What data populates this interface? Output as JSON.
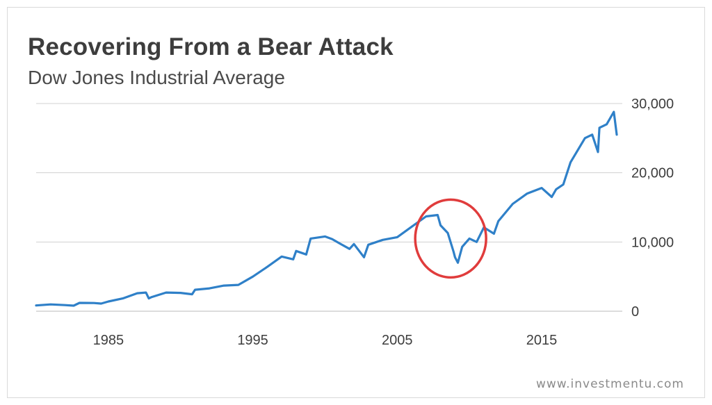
{
  "header": {
    "title": "Recovering From a Bear Attack",
    "subtitle": "Dow Jones Industrial Average"
  },
  "footer": {
    "source": "www.investmentu.com"
  },
  "colors": {
    "line": "#2f80c8",
    "highlight": "#e03c3c",
    "grid": "#d0d0d0",
    "text": "#3d3d3d"
  },
  "chart_data": {
    "type": "line",
    "title": "Recovering From a Bear Attack",
    "subtitle": "Dow Jones Industrial Average",
    "xlabel": "",
    "ylabel": "",
    "xlim": [
      1980,
      2020.2
    ],
    "ylim": [
      0,
      30000
    ],
    "grid": true,
    "y_axis_side": "right",
    "x_ticks": [
      1985,
      1995,
      2005,
      2015
    ],
    "x_tick_labels": [
      "1985",
      "1995",
      "2005",
      "2015"
    ],
    "y_ticks": [
      0,
      10000,
      20000,
      30000
    ],
    "y_tick_labels": [
      "0",
      "10,000",
      "20,000",
      "30,000"
    ],
    "series": [
      {
        "x": [
          1980,
          1981,
          1982,
          1982.6,
          1983,
          1984,
          1984.5,
          1985,
          1986,
          1987,
          1987.6,
          1987.8,
          1988,
          1989,
          1990,
          1990.8,
          1991,
          1992,
          1993,
          1994,
          1995,
          1996,
          1997,
          1997.8,
          1998,
          1998.7,
          1999,
          2000,
          2000.5,
          2001,
          2001.7,
          2002,
          2002.7,
          2003,
          2004,
          2005,
          2006,
          2007,
          2007.8,
          2008,
          2008.5,
          2008.9,
          2009,
          2009.2,
          2009.5,
          2010,
          2010.5,
          2011,
          2011.7,
          2012,
          2013,
          2014,
          2015,
          2015.7,
          2016,
          2016.5,
          2017,
          2018,
          2018.5,
          2018.9,
          2019,
          2019.5,
          2020,
          2020.2
        ],
        "values": [
          830,
          980,
          880,
          800,
          1200,
          1180,
          1100,
          1400,
          1850,
          2600,
          2700,
          1850,
          2050,
          2700,
          2650,
          2450,
          3100,
          3300,
          3700,
          3800,
          5000,
          6400,
          7900,
          7500,
          8700,
          8200,
          10500,
          10800,
          10400,
          9800,
          9000,
          9700,
          7800,
          9600,
          10300,
          10700,
          12200,
          13700,
          13900,
          12400,
          11300,
          8600,
          7800,
          7000,
          9300,
          10500,
          10000,
          12100,
          11200,
          13000,
          15500,
          17000,
          17800,
          16500,
          17600,
          18300,
          21500,
          25000,
          25500,
          23000,
          26500,
          27000,
          28800,
          25500
        ]
      }
    ],
    "annotations": [
      {
        "type": "circle",
        "center_x": 2008.7,
        "center_y": 10500,
        "note": ""
      }
    ]
  }
}
